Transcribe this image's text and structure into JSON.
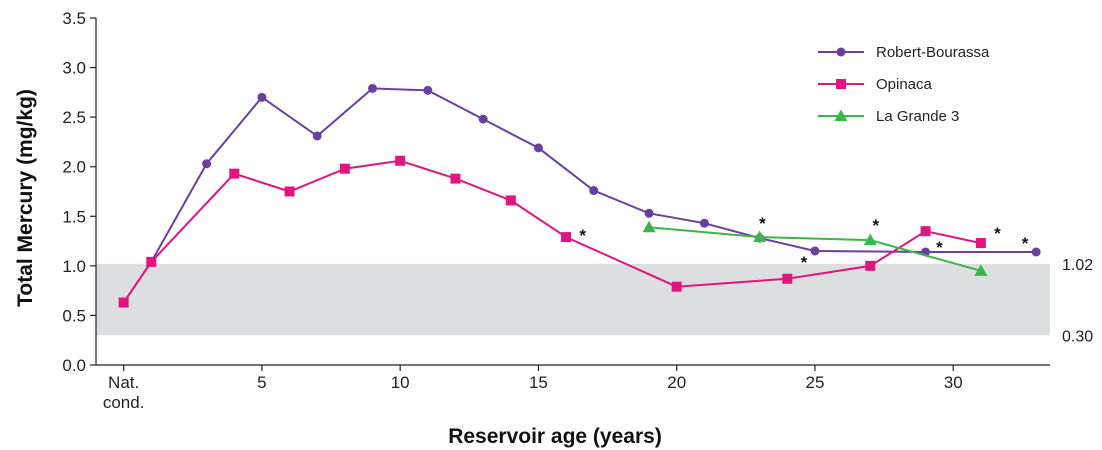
{
  "chart_data": {
    "type": "line",
    "xlabel": "Reservoir age (years)",
    "ylabel": "Total Mercury (mg/kg)",
    "ylim": [
      0,
      3.5
    ],
    "xlim": [
      -1,
      33.5
    ],
    "yticks": [
      "0.0",
      "0.5",
      "1.0",
      "1.5",
      "2.0",
      "2.5",
      "3.0",
      "3.5"
    ],
    "xticks": [
      {
        "x": 0,
        "lines": [
          "Nat.",
          "cond."
        ]
      },
      {
        "x": 5,
        "lines": [
          "5"
        ]
      },
      {
        "x": 10,
        "lines": [
          "10"
        ]
      },
      {
        "x": 15,
        "lines": [
          "15"
        ]
      },
      {
        "x": 20,
        "lines": [
          "20"
        ]
      },
      {
        "x": 25,
        "lines": [
          "25"
        ]
      },
      {
        "x": 30,
        "lines": [
          "30"
        ]
      }
    ],
    "band": {
      "low": 0.3,
      "high": 1.02,
      "low_label": "0.30",
      "high_label": "1.02",
      "color": "#dcdee0"
    },
    "legend_position": "top-right",
    "series": [
      {
        "name": "Robert-Bourassa",
        "color": "#6b3fa0",
        "marker": "circle",
        "points": [
          [
            0,
            0.63
          ],
          [
            1,
            1.04
          ],
          [
            3,
            2.03
          ],
          [
            5,
            2.7
          ],
          [
            7,
            2.31
          ],
          [
            9,
            2.79
          ],
          [
            11,
            2.77
          ],
          [
            13,
            2.48
          ],
          [
            15,
            2.19
          ],
          [
            17,
            1.76
          ],
          [
            19,
            1.53
          ],
          [
            21,
            1.43
          ],
          [
            23,
            1.28
          ],
          [
            25,
            1.15
          ],
          [
            29,
            1.14
          ],
          [
            33,
            1.14
          ]
        ]
      },
      {
        "name": "Opinaca",
        "color": "#e0157f",
        "marker": "square",
        "points": [
          [
            0,
            0.63
          ],
          [
            1,
            1.04
          ],
          [
            4,
            1.93
          ],
          [
            6,
            1.75
          ],
          [
            8,
            1.98
          ],
          [
            10,
            2.06
          ],
          [
            12,
            1.88
          ],
          [
            14,
            1.66
          ],
          [
            16,
            1.29
          ],
          [
            20,
            0.79
          ],
          [
            24,
            0.87
          ],
          [
            27,
            1.0
          ],
          [
            29,
            1.35
          ],
          [
            31,
            1.23
          ]
        ]
      },
      {
        "name": "La Grande 3",
        "color": "#3cb54a",
        "marker": "triangle",
        "points": [
          [
            19,
            1.39
          ],
          [
            23,
            1.29
          ],
          [
            27,
            1.26
          ],
          [
            31,
            0.95
          ]
        ]
      }
    ],
    "annotations": [
      {
        "text": "*",
        "x": 16.6,
        "y": 1.33
      },
      {
        "text": "*",
        "x": 23.1,
        "y": 1.45
      },
      {
        "text": "*",
        "x": 24.6,
        "y": 1.06
      },
      {
        "text": "*",
        "x": 27.2,
        "y": 1.43
      },
      {
        "text": "*",
        "x": 29.5,
        "y": 1.21
      },
      {
        "text": "*",
        "x": 31.6,
        "y": 1.35
      },
      {
        "text": "*",
        "x": 32.6,
        "y": 1.25
      }
    ]
  }
}
